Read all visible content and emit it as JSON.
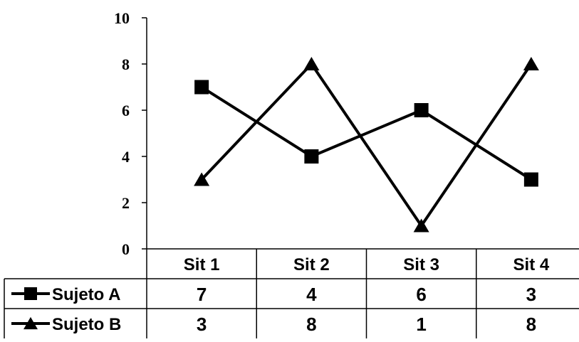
{
  "chart_data": {
    "type": "line",
    "categories": [
      "Sit 1",
      "Sit 2",
      "Sit 3",
      "Sit 4"
    ],
    "series": [
      {
        "name": "Sujeto A",
        "marker": "square",
        "values": [
          7,
          4,
          6,
          3
        ]
      },
      {
        "name": "Sujeto B",
        "marker": "triangle",
        "values": [
          3,
          8,
          1,
          8
        ]
      }
    ],
    "ylim": [
      0,
      10
    ],
    "yticks": [
      0,
      2,
      4,
      6,
      8,
      10
    ],
    "title": "",
    "xlabel": "",
    "ylabel": "",
    "grid": false,
    "data_table": true,
    "line_color": "#000000"
  }
}
